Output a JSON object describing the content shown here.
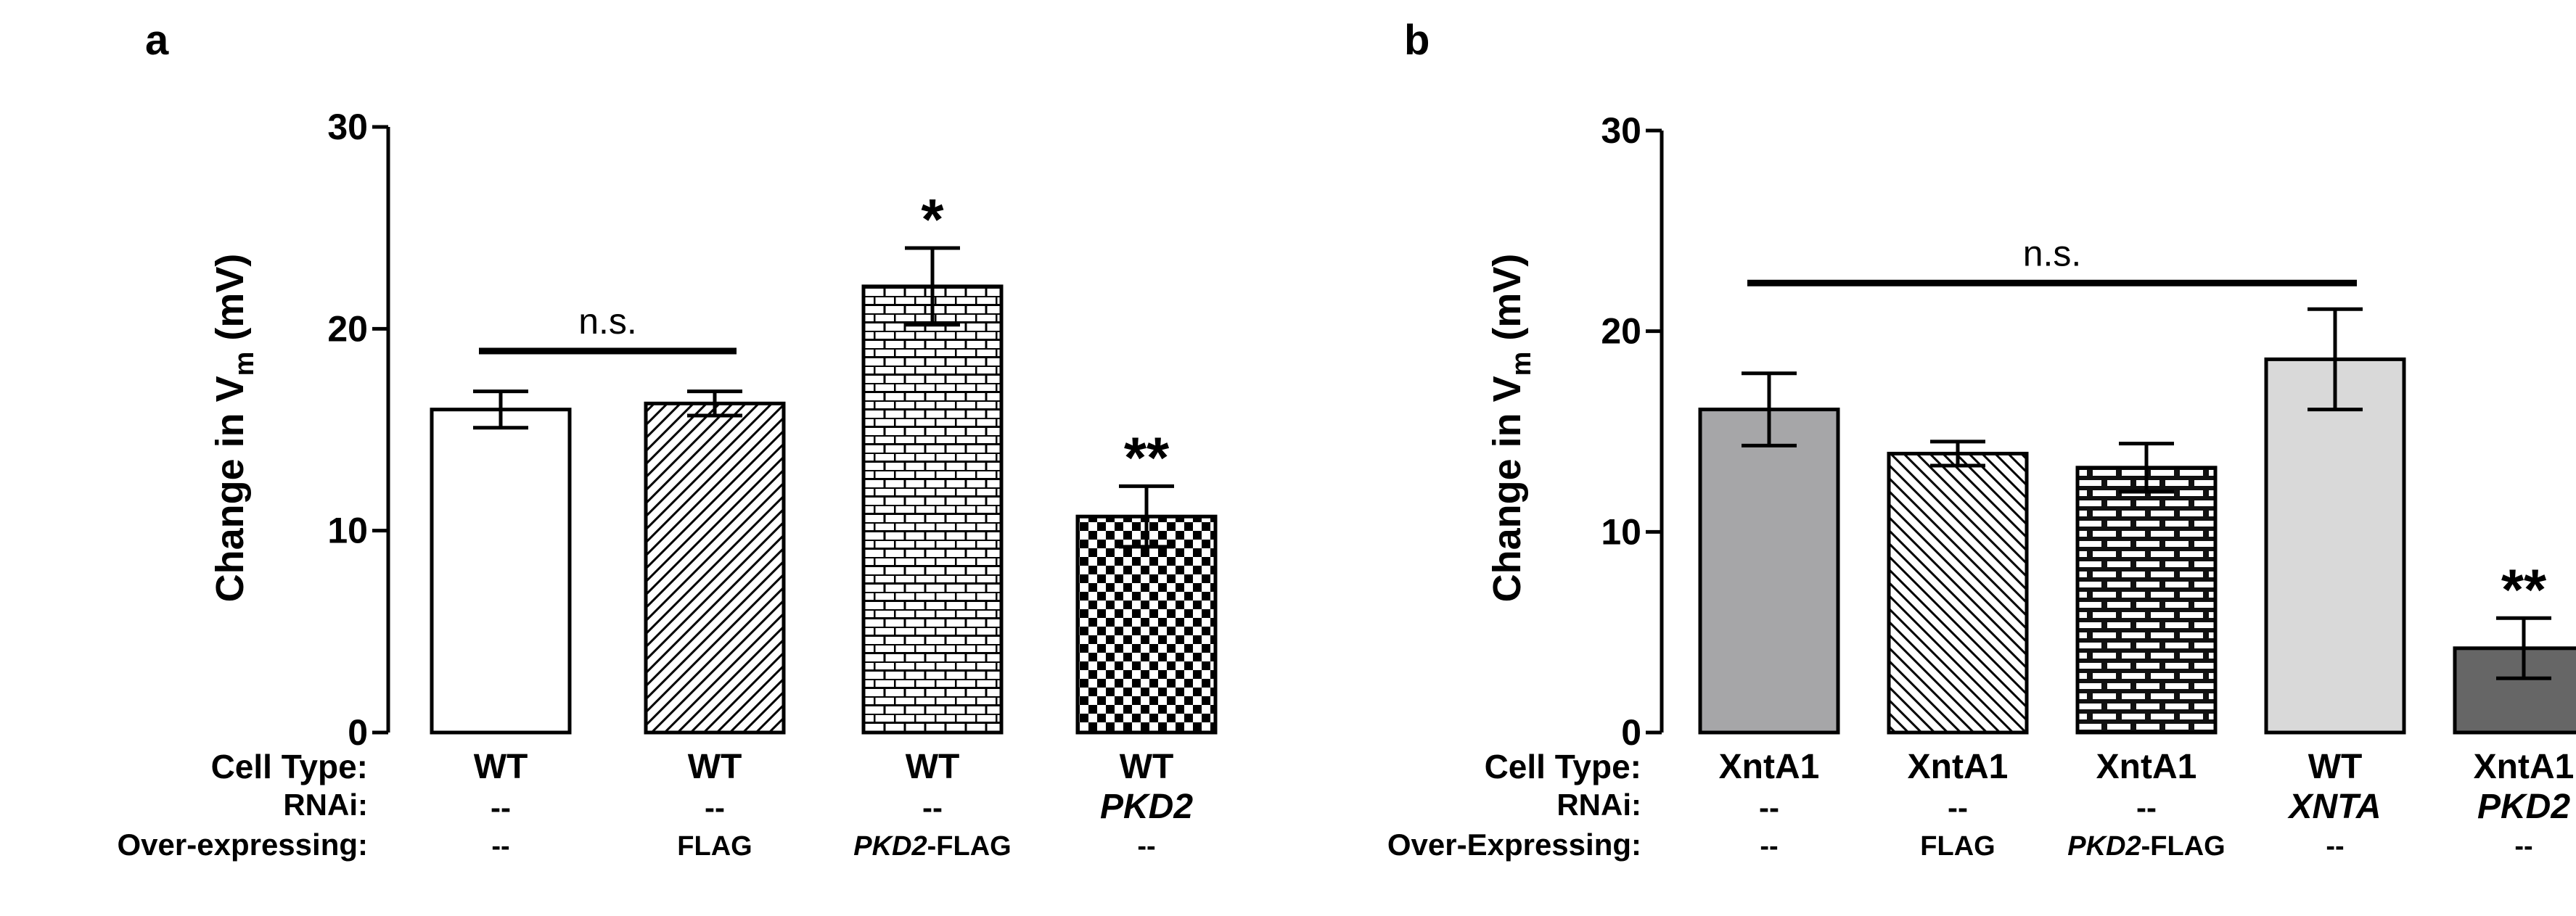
{
  "chart_data": [
    {
      "type": "bar",
      "panel_label": "a",
      "ylabel": {
        "prefix": "Change in V",
        "sub": "m",
        "suffix": " (mV)"
      },
      "ylim": [
        0,
        30
      ],
      "yticks": [
        0,
        10,
        20,
        30
      ],
      "row_labels": [
        "Cell Type:",
        "RNAi:",
        "Over-expressing:"
      ],
      "categories": [
        {
          "cell_type": "WT",
          "rnai": "--",
          "overexpressing": [
            {
              "t": "--",
              "i": false
            }
          ]
        },
        {
          "cell_type": "WT",
          "rnai": "--",
          "overexpressing": [
            {
              "t": "FLAG",
              "i": false
            }
          ]
        },
        {
          "cell_type": "WT",
          "rnai": "--",
          "overexpressing": [
            {
              "t": "PKD2",
              "i": true
            },
            {
              "t": "-FLAG",
              "i": false
            }
          ]
        },
        {
          "cell_type": "WT",
          "rnai": "PKD2",
          "rnai_style": "bold-italic",
          "overexpressing": [
            {
              "t": "--",
              "i": false
            }
          ]
        }
      ],
      "values": [
        16.0,
        16.3,
        22.1,
        10.7
      ],
      "errors": [
        0.9,
        0.6,
        1.9,
        1.5
      ],
      "fills": [
        "white",
        "diagonal",
        "brick-small",
        "checker"
      ],
      "significance": [
        "",
        "",
        "*",
        "**"
      ],
      "ns_bracket": {
        "label": "n.s.",
        "from": 0,
        "to": 1,
        "y": 18.9
      }
    },
    {
      "type": "bar",
      "panel_label": "b",
      "ylabel": {
        "prefix": "Change in V",
        "sub": "m",
        "suffix": " (mV)"
      },
      "ylim": [
        0,
        30
      ],
      "yticks": [
        0,
        10,
        20,
        30
      ],
      "row_labels": [
        "Cell Type:",
        "RNAi:",
        "Over-Expressing:"
      ],
      "categories": [
        {
          "cell_type": "XntA1",
          "rnai": "--",
          "overexpressing": [
            {
              "t": "--",
              "i": false
            }
          ]
        },
        {
          "cell_type": "XntA1",
          "rnai": "--",
          "overexpressing": [
            {
              "t": "FLAG",
              "i": false
            }
          ]
        },
        {
          "cell_type": "XntA1",
          "rnai": "--",
          "overexpressing": [
            {
              "t": "PKD2",
              "i": true
            },
            {
              "t": "-FLAG",
              "i": false
            }
          ]
        },
        {
          "cell_type": "WT",
          "rnai": "XNTA",
          "rnai_style": "bold-italic",
          "overexpressing": [
            {
              "t": "--",
              "i": false
            }
          ]
        },
        {
          "cell_type": "XntA1",
          "rnai": "PKD2",
          "rnai_style": "bold-italic",
          "overexpressing": [
            {
              "t": "--",
              "i": false
            }
          ]
        }
      ],
      "values": [
        16.1,
        13.9,
        13.2,
        18.6,
        4.2
      ],
      "errors": [
        1.8,
        0.6,
        1.2,
        2.5,
        1.5
      ],
      "fills": [
        "#a6a6a8",
        "diagonal-back",
        "brick-large",
        "#d9d9d9",
        "#666666"
      ],
      "significance": [
        "",
        "",
        "",
        "",
        "**"
      ],
      "ns_bracket": {
        "label": "n.s.",
        "from": 0,
        "to": 3,
        "y": 22.4
      }
    }
  ]
}
